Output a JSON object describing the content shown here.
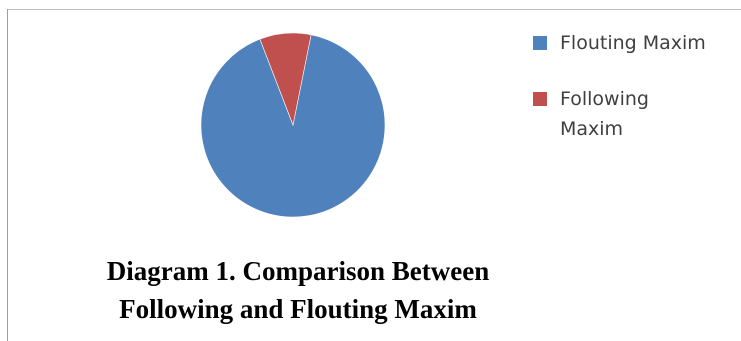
{
  "chart_data": {
    "type": "pie",
    "categories": [
      "Flouting Maxim",
      "Following Maxim"
    ],
    "values": [
      91,
      9
    ],
    "colors": [
      "#4f81bd",
      "#c0504d"
    ],
    "legend_position": "right",
    "title": "",
    "caption_lines": [
      "Diagram 1. Comparison Between",
      "Following and Flouting Maxim"
    ]
  },
  "legend": {
    "items": [
      {
        "label": "Flouting Maxim",
        "color": "#4f81bd"
      },
      {
        "label": "Following Maxim",
        "color": "#c0504d"
      }
    ]
  }
}
